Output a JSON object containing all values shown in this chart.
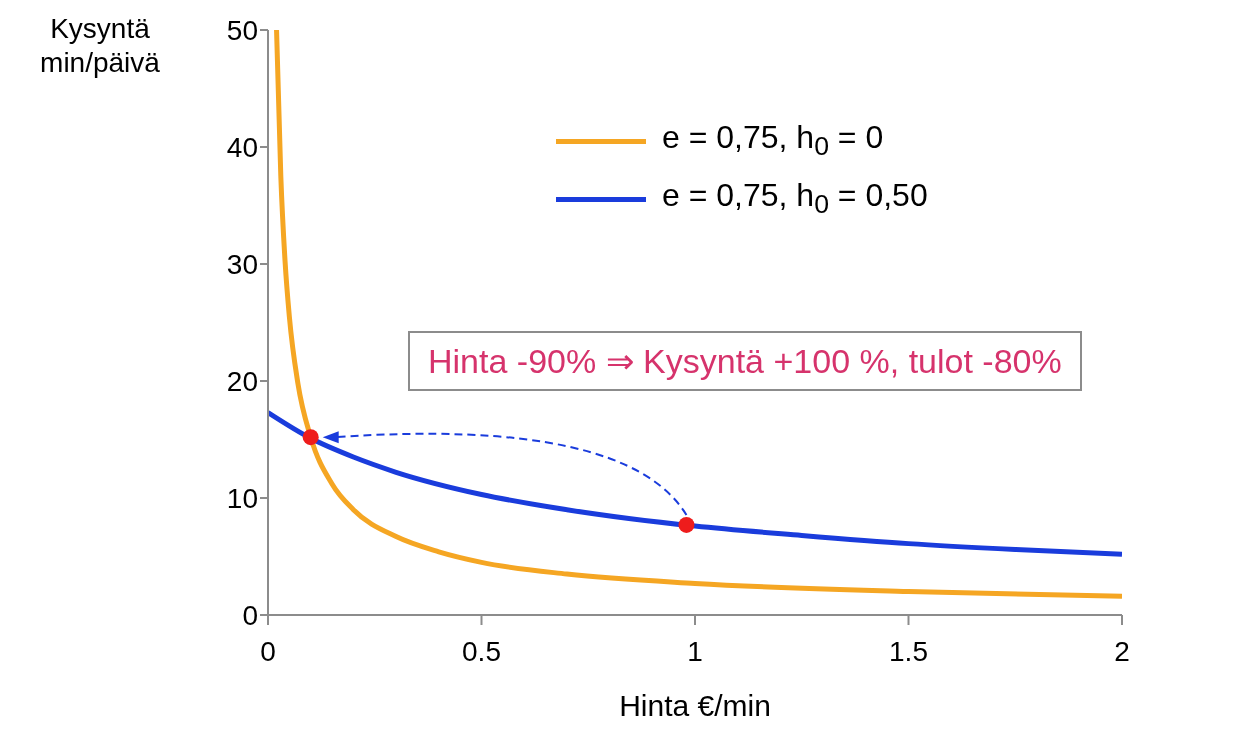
{
  "chart_data": {
    "type": "line",
    "xlabel": "Hinta €/min",
    "ylabel": "Kysyntä min/päivä",
    "xlim": [
      0,
      2
    ],
    "xticks": [
      0,
      0.5,
      1,
      1.5,
      2
    ],
    "ylim": [
      0,
      50
    ],
    "yticks": [
      0,
      10,
      20,
      30,
      40,
      50
    ],
    "grid": false,
    "legend": "top right",
    "annotations": [
      "Hinta -90% ⇒ Kysyntä +100 %, tulot -80%"
    ],
    "series": [
      {
        "name": "e = 0,75, h$_{0}$ = 0",
        "color": "#f5a623",
        "x": [
          0.02,
          0.03,
          0.04,
          0.05,
          0.07,
          0.1,
          0.15,
          0.2,
          0.3,
          0.4,
          0.5,
          0.7,
          1,
          1.5,
          2
        ],
        "values": [
          50,
          37.5,
          30.2,
          25.5,
          19.8,
          15.2,
          11.2,
          9.0,
          6.7,
          5.4,
          4.5,
          3.5,
          2.7,
          2.0,
          1.6
        ]
      },
      {
        "name": "e = 0,75, h$_{0}$ = 0,50",
        "color": "#1a3cdc",
        "x": [
          0,
          0.1,
          0.2,
          0.3,
          0.5,
          0.7,
          1,
          1.25,
          1.5,
          1.75,
          2
        ],
        "values": [
          17.3,
          15.1,
          13.5,
          12.2,
          10.3,
          9.0,
          7.6,
          6.8,
          6.1,
          5.6,
          5.2
        ]
      },
      {
        "type": "scatter",
        "color": "#ee1c1c",
        "x": [
          0.1,
          0.98
        ],
        "values": [
          15.2,
          7.7
        ]
      }
    ]
  }
}
